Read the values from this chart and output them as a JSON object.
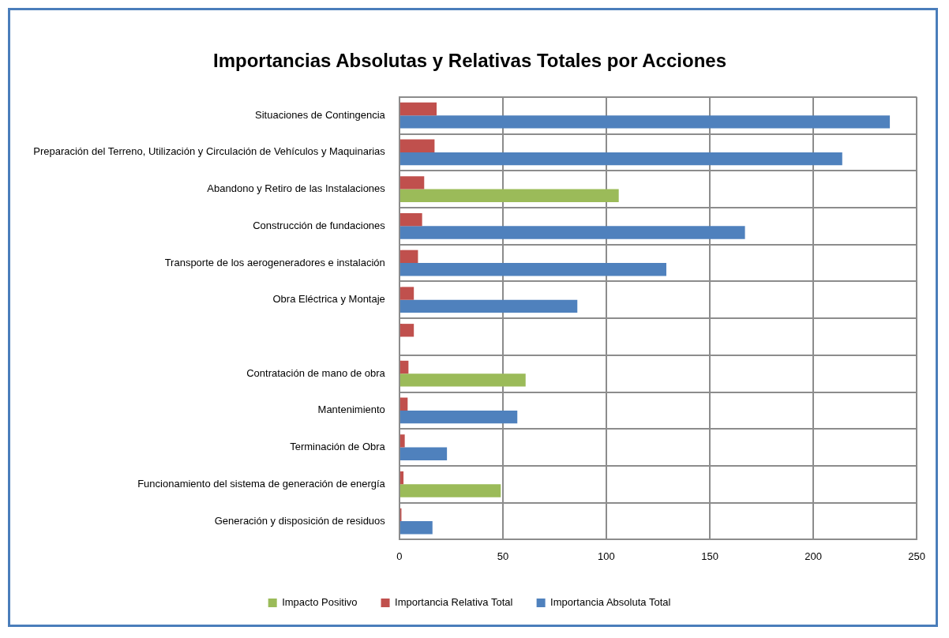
{
  "chart_data": {
    "type": "bar",
    "orientation": "horizontal",
    "title": "Importancias Absolutas y Relativas Totales por Acciones",
    "categories": [
      "Situaciones de Contingencia",
      "Preparación del Terreno, Utilización y Circulación de Vehículos y Maquinarias",
      "Abandono y Retiro de las Instalaciones",
      "Construcción de fundaciones",
      "Transporte de los aerogeneradores e instalación",
      "Obra Eléctrica y Montaje",
      null,
      "Contratación de mano de obra",
      "Mantenimiento",
      "Terminación de Obra",
      "Funcionamiento del sistema de generación de energía",
      "Generación y disposición de residuos"
    ],
    "series": [
      {
        "name": "Impacto Positivo",
        "color": "#9bbb59",
        "values": [
          null,
          null,
          106,
          null,
          null,
          null,
          null,
          61,
          null,
          null,
          49,
          null
        ]
      },
      {
        "name": "Importancia Relativa Total",
        "color": "#c0504d",
        "values": [
          18,
          17,
          12,
          11,
          9,
          7,
          7,
          4.4,
          4,
          2.6,
          2,
          1
        ]
      },
      {
        "name": "Importancia Absoluta Total",
        "color": "#4f81bd",
        "values": [
          237,
          214,
          null,
          167,
          129,
          86,
          null,
          null,
          57,
          23,
          null,
          16
        ]
      }
    ],
    "xlim": [
      0,
      250
    ],
    "xticks": [
      0,
      50,
      100,
      150,
      200,
      250
    ],
    "grid": true,
    "legend": "bottom"
  }
}
